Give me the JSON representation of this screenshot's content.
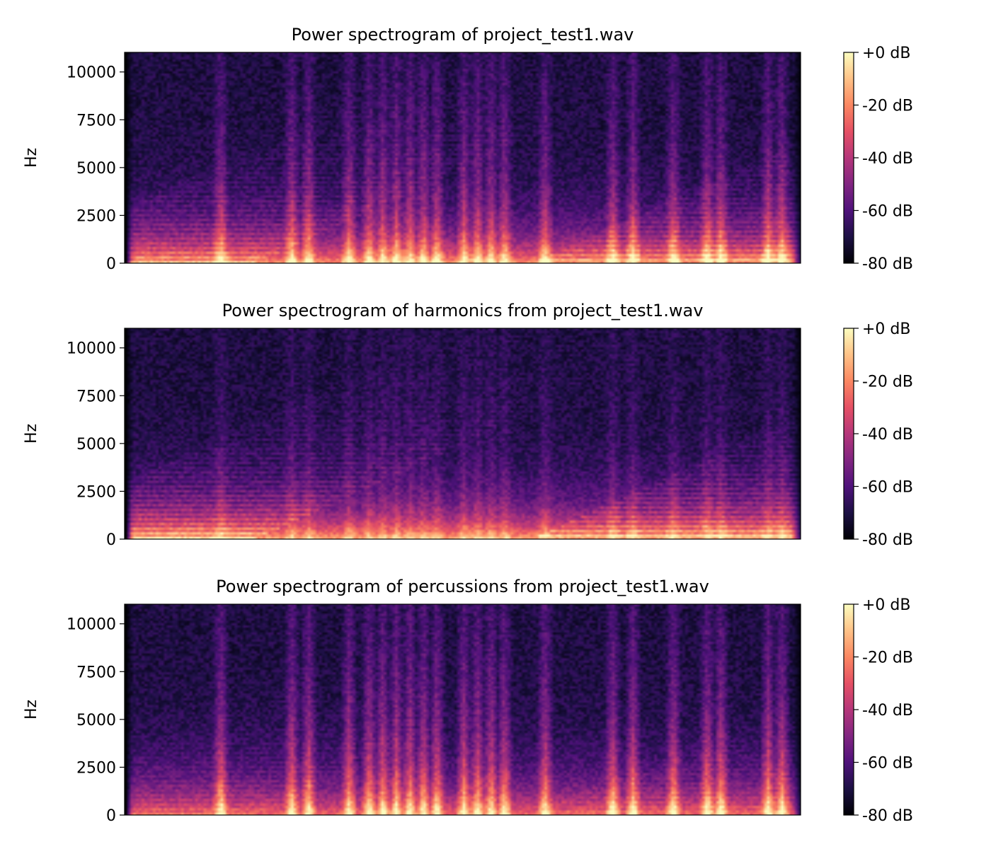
{
  "chart_data": [
    {
      "type": "heatmap",
      "title": "Power spectrogram of project_test1.wav",
      "xlabel": "",
      "ylabel": "Hz",
      "ylim": [
        0,
        11025
      ],
      "yticks": [
        0,
        2500,
        5000,
        7500,
        10000
      ],
      "ytick_labels": [
        "0",
        "2500",
        "5000",
        "7500",
        "10000"
      ],
      "x_axis_visible": false,
      "colormap": "magma",
      "colorbar": {
        "range": [
          -80,
          0
        ],
        "ticks": [
          0,
          -20,
          -40,
          -60,
          -80
        ],
        "tick_labels": [
          "+0 dB",
          "-20 dB",
          "-40 dB",
          "-60 dB",
          "-80 dB"
        ]
      }
    },
    {
      "type": "heatmap",
      "title": "Power spectrogram of harmonics from project_test1.wav",
      "xlabel": "",
      "ylabel": "Hz",
      "ylim": [
        0,
        11025
      ],
      "yticks": [
        0,
        2500,
        5000,
        7500,
        10000
      ],
      "ytick_labels": [
        "0",
        "2500",
        "5000",
        "7500",
        "10000"
      ],
      "x_axis_visible": false,
      "colormap": "magma",
      "colorbar": {
        "range": [
          -80,
          0
        ],
        "ticks": [
          0,
          -20,
          -40,
          -60,
          -80
        ],
        "tick_labels": [
          "+0 dB",
          "-20 dB",
          "-40 dB",
          "-60 dB",
          "-80 dB"
        ]
      }
    },
    {
      "type": "heatmap",
      "title": "Power spectrogram of percussions from project_test1.wav",
      "xlabel": "",
      "ylabel": "Hz",
      "ylim": [
        0,
        11025
      ],
      "yticks": [
        0,
        2500,
        5000,
        7500,
        10000
      ],
      "ytick_labels": [
        "0",
        "2500",
        "5000",
        "7500",
        "10000"
      ],
      "x_axis_visible": false,
      "colormap": "magma",
      "colorbar": {
        "range": [
          -80,
          0
        ],
        "ticks": [
          0,
          -20,
          -40,
          -60,
          -80
        ],
        "tick_labels": [
          "+0 dB",
          "-20 dB",
          "-40 dB",
          "-60 dB",
          "-80 dB"
        ]
      }
    }
  ],
  "colors": {
    "magma_stops": [
      "#000004",
      "#1c1044",
      "#4f127b",
      "#812581",
      "#b5367a",
      "#e55064",
      "#fb8761",
      "#fec287",
      "#fcfdbf"
    ]
  }
}
